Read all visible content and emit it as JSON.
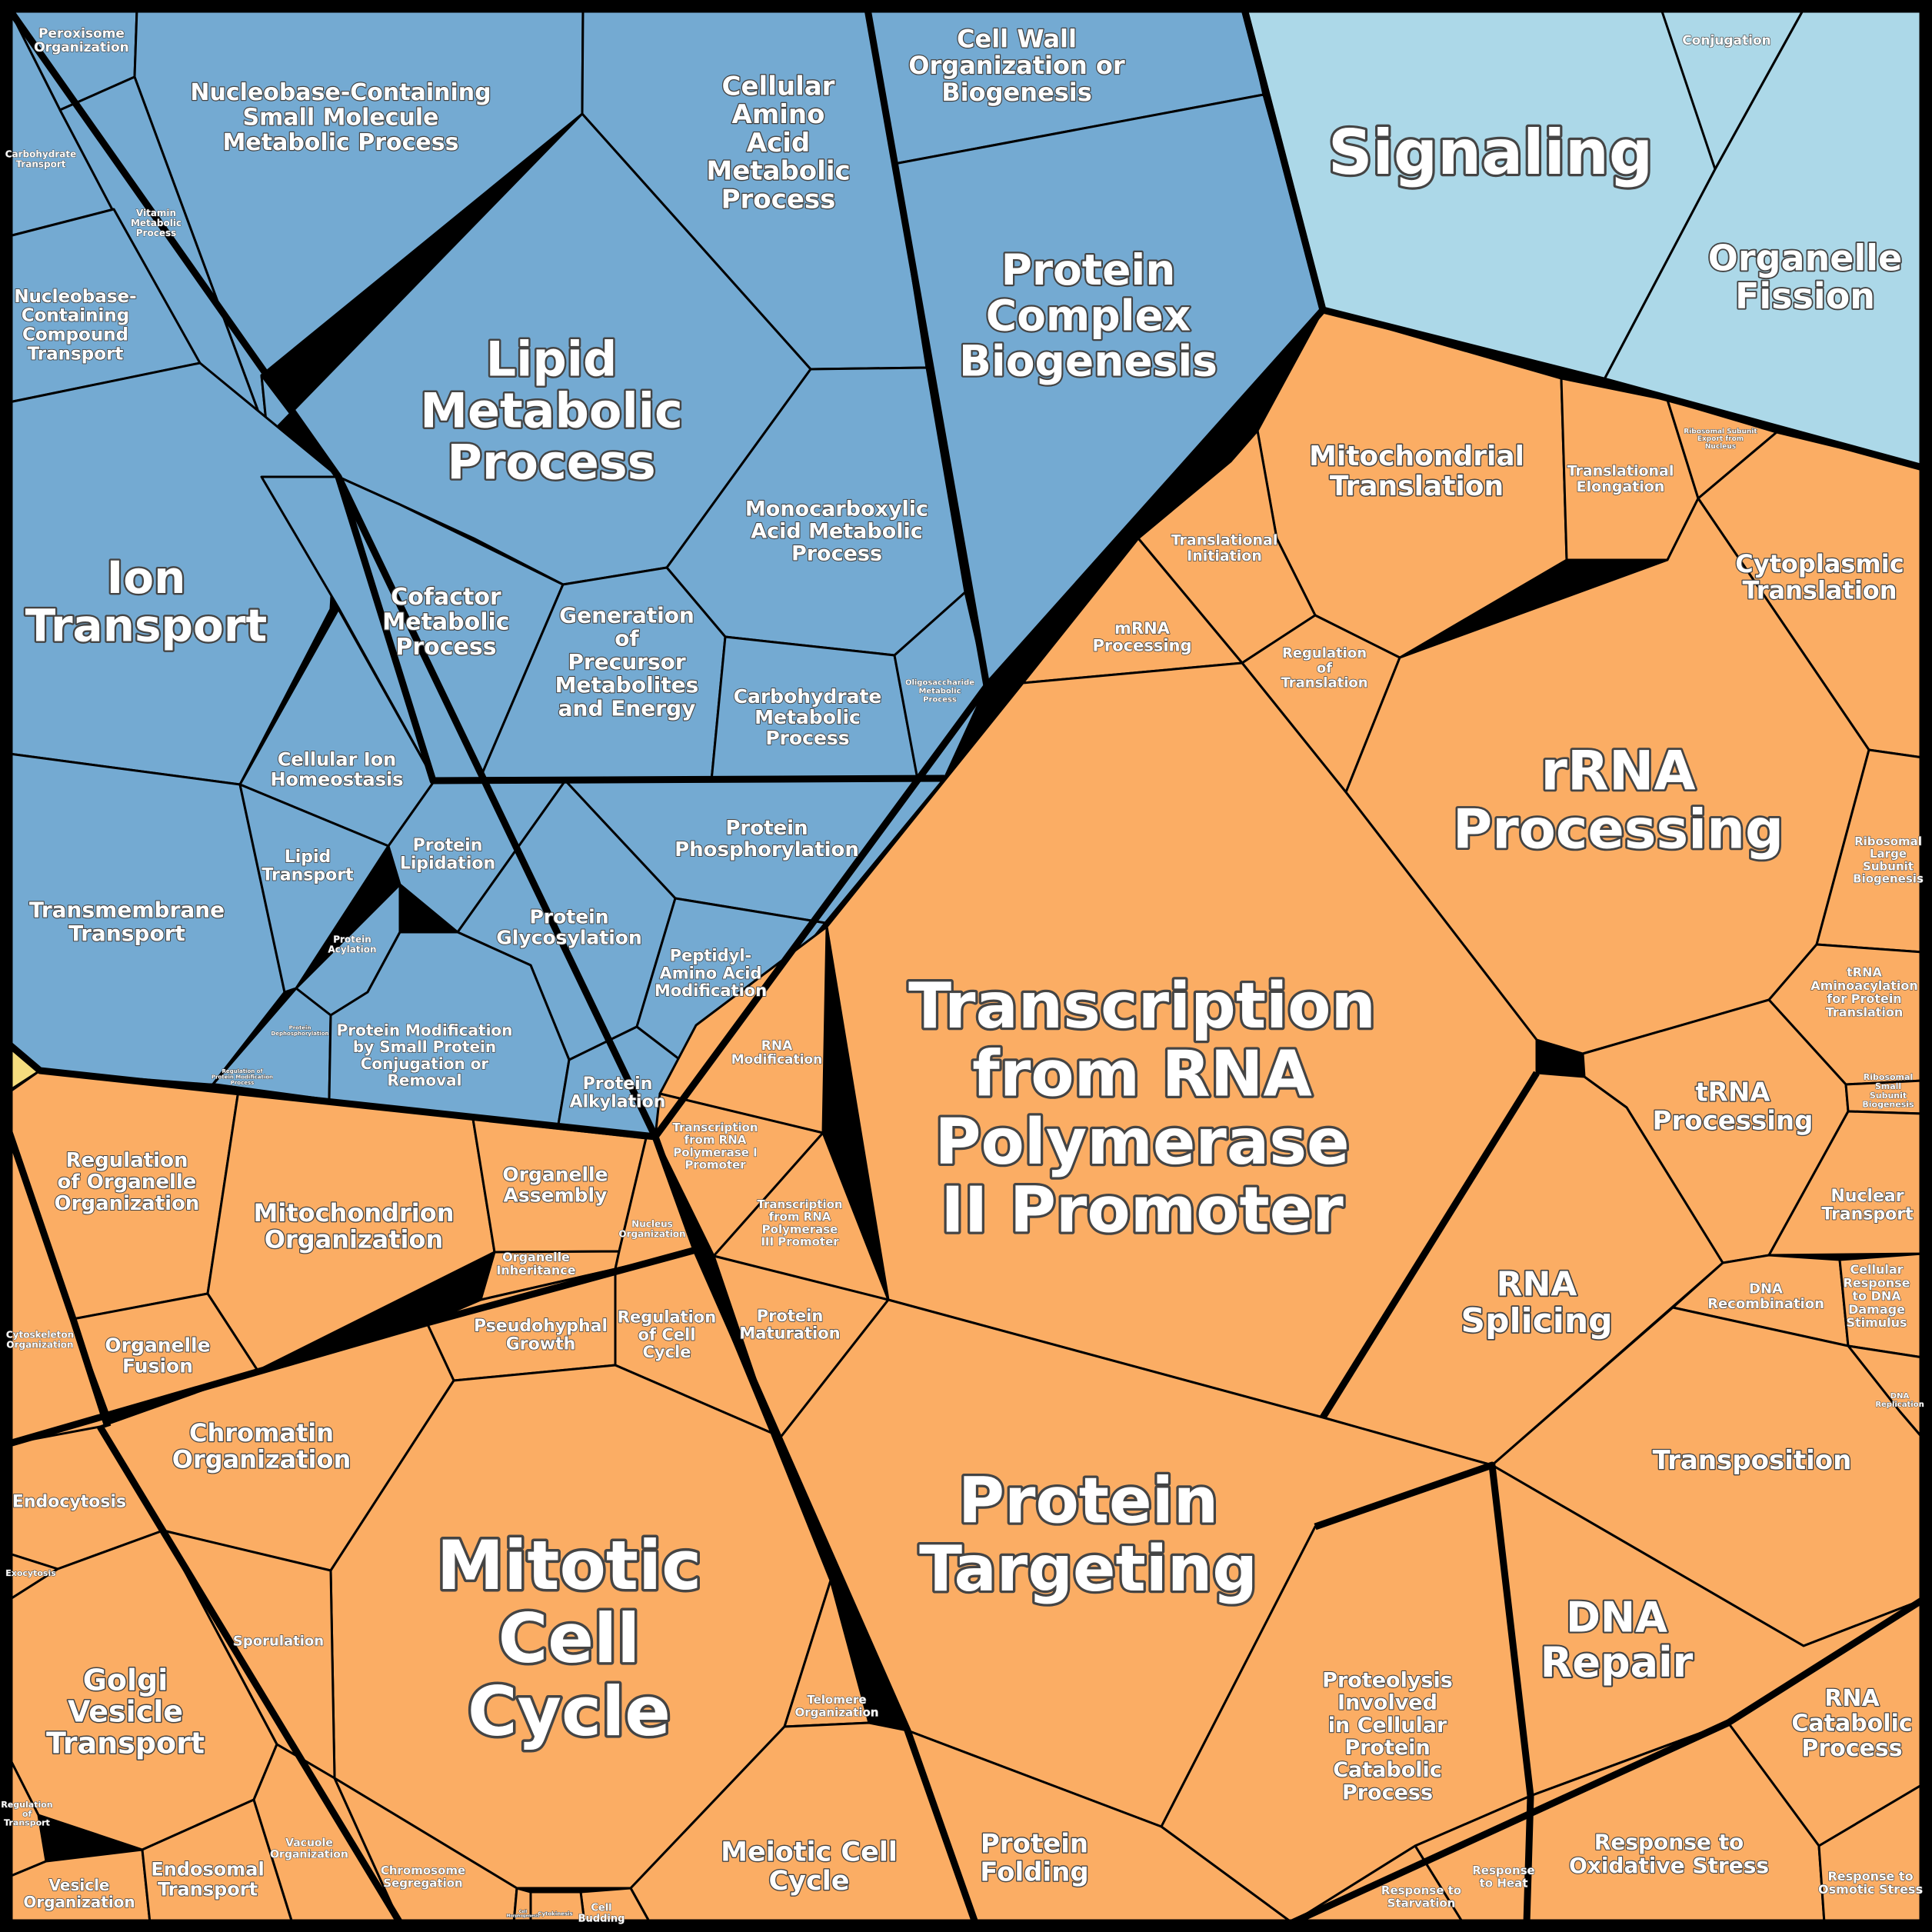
{
  "colors": {
    "blue": "#74aad2",
    "lightblue": "#acd8e8",
    "orange": "#fbad64",
    "yellow": "#f5dd7e",
    "border": "#000000"
  },
  "cells": [
    {
      "id": "peroxisome",
      "group": "blue",
      "label": "Peroxisome\nOrganization"
    },
    {
      "id": "nucleobase-small",
      "group": "blue",
      "label": "Nucleobase-Containing\nSmall Molecule\nMetabolic Process"
    },
    {
      "id": "cellular-amino",
      "group": "blue",
      "label": "Cellular\nAmino\nAcid\nMetabolic\nProcess"
    },
    {
      "id": "cell-wall",
      "group": "blue",
      "label": "Cell Wall\nOrganization or\nBiogenesis"
    },
    {
      "id": "carbohydrate-transport",
      "group": "blue",
      "label": "Carbohydrate\nTransport"
    },
    {
      "id": "vitamin",
      "group": "blue",
      "label": "Vitamin\nMetabolic\nProcess"
    },
    {
      "id": "nucleobase-transport",
      "group": "blue",
      "label": "Nucleobase-\nContaining\nCompound\nTransport"
    },
    {
      "id": "lipid-metabolic",
      "group": "blue",
      "label": "Lipid\nMetabolic\nProcess"
    },
    {
      "id": "protein-complex",
      "group": "blue",
      "label": "Protein\nComplex\nBiogenesis"
    },
    {
      "id": "ion-transport",
      "group": "blue",
      "label": "Ion\nTransport"
    },
    {
      "id": "cofactor",
      "group": "blue",
      "label": "Cofactor\nMetabolic\nProcess"
    },
    {
      "id": "monocarboxylic",
      "group": "blue",
      "label": "Monocarboxylic\nAcid Metabolic\nProcess"
    },
    {
      "id": "generation-precursor",
      "group": "blue",
      "label": "Generation\nof\nPrecursor\nMetabolites\nand Energy"
    },
    {
      "id": "carbohydrate-metabolic",
      "group": "blue",
      "label": "Carbohydrate\nMetabolic\nProcess"
    },
    {
      "id": "oligosaccharide",
      "group": "blue",
      "label": "Oligosaccharide\nMetabolic\nProcess"
    },
    {
      "id": "cellular-ion",
      "group": "blue",
      "label": "Cellular Ion\nHomeostasis"
    },
    {
      "id": "transmembrane",
      "group": "blue",
      "label": "Transmembrane\nTransport"
    },
    {
      "id": "lipid-transport",
      "group": "blue",
      "label": "Lipid\nTransport"
    },
    {
      "id": "protein-lipidation",
      "group": "blue",
      "label": "Protein\nLipidation"
    },
    {
      "id": "protein-phosphorylation",
      "group": "blue",
      "label": "Protein\nPhosphorylation"
    },
    {
      "id": "protein-glycosylation",
      "group": "blue",
      "label": "Protein\nGlycosylation"
    },
    {
      "id": "protein-acylation",
      "group": "blue",
      "label": "Protein\nAcylation"
    },
    {
      "id": "peptidyl",
      "group": "blue",
      "label": "Peptidyl-\nAmino Acid\nModification"
    },
    {
      "id": "protein-depho",
      "group": "blue",
      "label": "Protein\nDephosphorylation"
    },
    {
      "id": "protein-mod-small",
      "group": "blue",
      "label": "Protein Modification\nby Small Protein\nConjugation or\nRemoval"
    },
    {
      "id": "reg-protein-mod",
      "group": "blue",
      "label": "Regulation of\nProtein Modification\nProcess"
    },
    {
      "id": "protein-alkylation",
      "group": "blue",
      "label": "Protein\nAlkylation"
    },
    {
      "id": "signaling",
      "group": "lightblue",
      "label": "Signaling"
    },
    {
      "id": "conjugation",
      "group": "lightblue",
      "label": "Conjugation"
    },
    {
      "id": "organelle-fission",
      "group": "lightblue",
      "label": "Organelle\nFission"
    },
    {
      "id": "yellow-bit",
      "group": "yellow",
      "label": ""
    },
    {
      "id": "mito-translation",
      "group": "orange",
      "label": "Mitochondrial\nTranslation"
    },
    {
      "id": "transl-elongation",
      "group": "orange",
      "label": "Translational\nElongation"
    },
    {
      "id": "ribosomal-export",
      "group": "orange",
      "label": "Ribosomal Subunit\nExport from\nNucleus"
    },
    {
      "id": "cyto-translation",
      "group": "orange",
      "label": "Cytoplasmic\nTranslation"
    },
    {
      "id": "transl-initiation",
      "group": "orange",
      "label": "Translational\nInitiation"
    },
    {
      "id": "mrna-processing",
      "group": "orange",
      "label": "mRNA\nProcessing"
    },
    {
      "id": "reg-translation",
      "group": "orange",
      "label": "Regulation\nof\nTranslation"
    },
    {
      "id": "rrna",
      "group": "orange",
      "label": "rRNA\nProcessing"
    },
    {
      "id": "ribosomal-large",
      "group": "orange",
      "label": "Ribosomal\nLarge\nSubunit\nBiogenesis"
    },
    {
      "id": "trna-amino",
      "group": "orange",
      "label": "tRNA\nAminoacylation\nfor Protein\nTranslation"
    },
    {
      "id": "trna-processing",
      "group": "orange",
      "label": "tRNA\nProcessing"
    },
    {
      "id": "ribosomal-small",
      "group": "orange",
      "label": "Ribosomal\nSmall\nSubunit\nBiogenesis"
    },
    {
      "id": "nuclear-transport",
      "group": "orange",
      "label": "Nuclear\nTransport"
    },
    {
      "id": "transcription-pol2",
      "group": "orange",
      "label": "Transcription\nfrom RNA\nPolymerase\nII Promoter"
    },
    {
      "id": "rna-modification",
      "group": "orange",
      "label": "RNA\nModification"
    },
    {
      "id": "transcription-pol1",
      "group": "orange",
      "label": "Transcription\nfrom RNA\nPolymerase I\nPromoter"
    },
    {
      "id": "transcription-pol3",
      "group": "orange",
      "label": "Transcription\nfrom RNA\nPolymerase\nIII Promoter"
    },
    {
      "id": "rna-splicing",
      "group": "orange",
      "label": "RNA\nSplicing"
    },
    {
      "id": "dna-recombination",
      "group": "orange",
      "label": "DNA\nRecombination"
    },
    {
      "id": "cellular-dna-damage",
      "group": "orange",
      "label": "Cellular\nResponse\nto DNA\nDamage\nStimulus"
    },
    {
      "id": "dna-replication",
      "group": "orange",
      "label": "DNA\nReplication"
    },
    {
      "id": "transposition",
      "group": "orange",
      "label": "Transposition"
    },
    {
      "id": "protein-maturation",
      "group": "orange",
      "label": "Protein\nMaturation"
    },
    {
      "id": "protein-targeting",
      "group": "orange",
      "label": "Protein\nTargeting"
    },
    {
      "id": "dna-repair",
      "group": "orange",
      "label": "DNA\nRepair"
    },
    {
      "id": "proteolysis",
      "group": "orange",
      "label": "Proteolysis\nInvolved\nin Cellular\nProtein\nCatabolic\nProcess"
    },
    {
      "id": "protein-folding",
      "group": "orange",
      "label": "Protein\nFolding"
    },
    {
      "id": "rna-catabolic",
      "group": "orange",
      "label": "RNA\nCatabolic\nProcess"
    },
    {
      "id": "response-oxidative",
      "group": "orange",
      "label": "Response to\nOxidative Stress"
    },
    {
      "id": "response-heat",
      "group": "orange",
      "label": "Response\nto Heat"
    },
    {
      "id": "response-starvation",
      "group": "orange",
      "label": "Response to\nStarvation"
    },
    {
      "id": "response-osmotic",
      "group": "orange",
      "label": "Response to\nOsmotic Stress"
    },
    {
      "id": "reg-organelle",
      "group": "orange",
      "label": "Regulation\nof Organelle\nOrganization"
    },
    {
      "id": "mitochondrion-org",
      "group": "orange",
      "label": "Mitochondrion\nOrganization"
    },
    {
      "id": "organelle-assembly",
      "group": "orange",
      "label": "Organelle\nAssembly"
    },
    {
      "id": "organelle-inheritance",
      "group": "orange",
      "label": "Organelle\nInheritance"
    },
    {
      "id": "nucleus-org",
      "group": "orange",
      "label": "Nucleus\nOrganization"
    },
    {
      "id": "cytoskeleton-org",
      "group": "orange",
      "label": "Cytoskeleton\nOrganization"
    },
    {
      "id": "organelle-fusion",
      "group": "orange",
      "label": "Organelle\nFusion"
    },
    {
      "id": "pseudohyphal",
      "group": "orange",
      "label": "Pseudohyphal\nGrowth"
    },
    {
      "id": "reg-cell-cycle",
      "group": "orange",
      "label": "Regulation\nof Cell\nCycle"
    },
    {
      "id": "chromatin",
      "group": "orange",
      "label": "Chromatin\nOrganization"
    },
    {
      "id": "endocytosis",
      "group": "orange",
      "label": "Endocytosis"
    },
    {
      "id": "exocytosis",
      "group": "orange",
      "label": "Exocytosis"
    },
    {
      "id": "mitotic-cell-cycle",
      "group": "orange",
      "label": "Mitotic\nCell\nCycle"
    },
    {
      "id": "sporulation",
      "group": "orange",
      "label": "Sporulation"
    },
    {
      "id": "golgi",
      "group": "orange",
      "label": "Golgi\nVesicle\nTransport"
    },
    {
      "id": "telomere",
      "group": "orange",
      "label": "Telomere\nOrganization"
    },
    {
      "id": "meiotic",
      "group": "orange",
      "label": "Meiotic Cell\nCycle"
    },
    {
      "id": "reg-transport",
      "group": "orange",
      "label": "Regulation\nof\nTransport"
    },
    {
      "id": "vesicle-org",
      "group": "orange",
      "label": "Vesicle\nOrganization"
    },
    {
      "id": "endosomal",
      "group": "orange",
      "label": "Endosomal\nTransport"
    },
    {
      "id": "vacuole",
      "group": "orange",
      "label": "Vacuole\nOrganization"
    },
    {
      "id": "chromosome-seg",
      "group": "orange",
      "label": "Chromosome\nSegregation"
    },
    {
      "id": "cell-morphogenesis",
      "group": "orange",
      "label": "Cell\nMorphogenesis"
    },
    {
      "id": "cell-budding",
      "group": "orange",
      "label": "Cell\nBudding"
    },
    {
      "id": "cytokinesis",
      "group": "orange",
      "label": "Cytokinesis"
    }
  ]
}
